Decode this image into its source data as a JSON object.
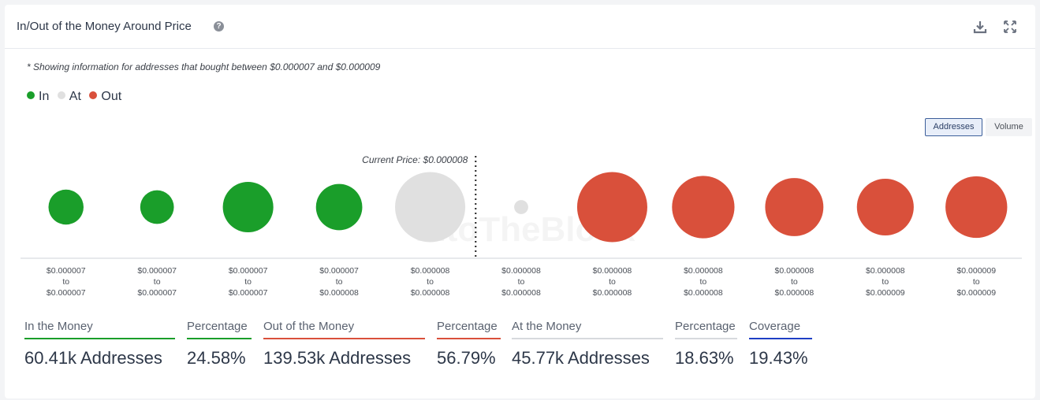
{
  "header": {
    "title": "In/Out of the Money Around Price"
  },
  "note": "* Showing information for addresses that bought between $0.000007 and $0.000009",
  "legend": [
    {
      "label": "In",
      "color": "#1a9e2a"
    },
    {
      "label": "At",
      "color": "#e0e0e0"
    },
    {
      "label": "Out",
      "color": "#d9503b"
    }
  ],
  "toggle": {
    "addresses": "Addresses",
    "volume": "Volume",
    "selected": "Addresses"
  },
  "watermark": "IntoTheBlock",
  "chart_data": {
    "type": "bubble",
    "current_price_label": "Current Price: $0.000008",
    "current_price_after_index": 4,
    "categories": [
      {
        "from": "$0.000007",
        "to": "$0.000007",
        "status": "In",
        "relative_size": 0.5
      },
      {
        "from": "$0.000007",
        "to": "$0.000007",
        "status": "In",
        "relative_size": 0.48
      },
      {
        "from": "$0.000007",
        "to": "$0.000007",
        "status": "In",
        "relative_size": 0.72
      },
      {
        "from": "$0.000007",
        "to": "$0.000008",
        "status": "In",
        "relative_size": 0.66
      },
      {
        "from": "$0.000008",
        "to": "$0.000008",
        "status": "At",
        "relative_size": 1.0
      },
      {
        "from": "$0.000008",
        "to": "$0.000008",
        "status": "At",
        "relative_size": 0.2
      },
      {
        "from": "$0.000008",
        "to": "$0.000008",
        "status": "Out",
        "relative_size": 1.0
      },
      {
        "from": "$0.000008",
        "to": "$0.000008",
        "status": "Out",
        "relative_size": 0.89
      },
      {
        "from": "$0.000008",
        "to": "$0.000008",
        "status": "Out",
        "relative_size": 0.83
      },
      {
        "from": "$0.000008",
        "to": "$0.000009",
        "status": "Out",
        "relative_size": 0.81
      },
      {
        "from": "$0.000009",
        "to": "$0.000009",
        "status": "Out",
        "relative_size": 0.88
      }
    ],
    "range_word": "to"
  },
  "stats": [
    {
      "label": "In the Money",
      "value": "60.41k Addresses",
      "color": "#1a9e2a"
    },
    {
      "label": "Percentage",
      "value": "24.58%",
      "color": "#1a9e2a"
    },
    {
      "label": "Out of the Money",
      "value": "139.53k Addresses",
      "color": "#d9503b"
    },
    {
      "label": "Percentage",
      "value": "56.79%",
      "color": "#d9503b"
    },
    {
      "label": "At the Money",
      "value": "45.77k Addresses",
      "color": "#d7d9dd"
    },
    {
      "label": "Percentage",
      "value": "18.63%",
      "color": "#d7d9dd"
    },
    {
      "label": "Coverage",
      "value": "19.43%",
      "color": "#1f3fc4"
    }
  ]
}
